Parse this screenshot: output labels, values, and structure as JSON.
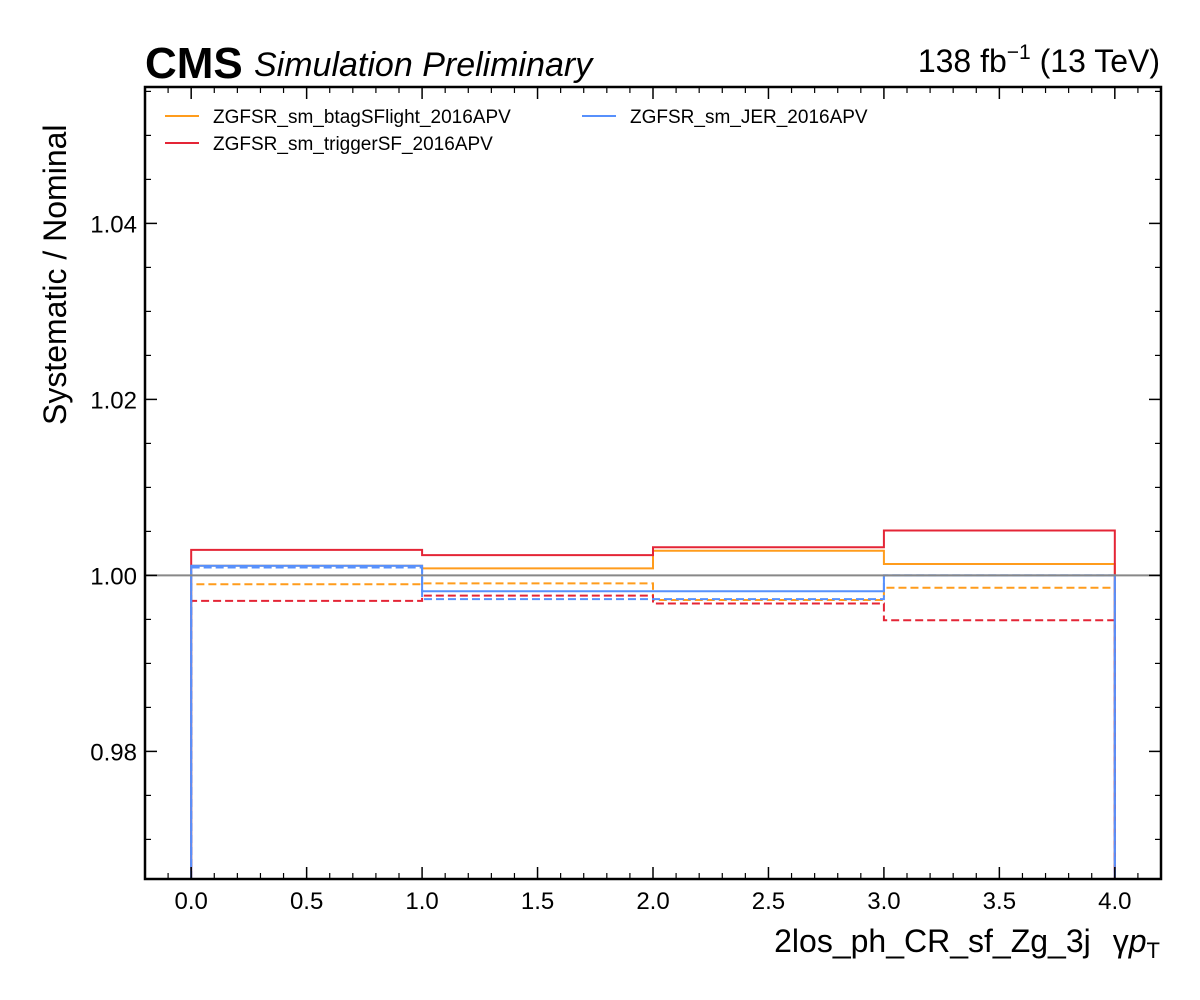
{
  "header": {
    "experiment": "CMS",
    "status": "Simulation Preliminary",
    "lumi_value": "138 fb",
    "lumi_exp": "−1",
    "lumi_energy": " (13 TeV)"
  },
  "chart_data": {
    "type": "line",
    "drawstyle": "steps",
    "xlabel": "2los_ph_CR_sf_Zg_3j",
    "xlabel_suffix_gamma": "γ",
    "xlabel_suffix_p": "p",
    "xlabel_suffix_sub": "T",
    "ylabel": "Systematic / Nominal",
    "xlim": [
      -0.2,
      4.2
    ],
    "ylim": [
      0.9655,
      1.0555
    ],
    "bin_edges": [
      0,
      1,
      2,
      3,
      4
    ],
    "x_ticks": [
      0.0,
      0.5,
      1.0,
      1.5,
      2.0,
      2.5,
      3.0,
      3.5,
      4.0
    ],
    "x_tick_labels": [
      "0.0",
      "0.5",
      "1.0",
      "1.5",
      "2.0",
      "2.5",
      "3.0",
      "3.5",
      "4.0"
    ],
    "y_ticks": [
      0.98,
      1.0,
      1.02,
      1.04
    ],
    "y_tick_labels": [
      "0.98",
      "1.00",
      "1.02",
      "1.04"
    ],
    "reference_line": 1.0,
    "reference_color": "#888888",
    "legend_position": "top-left",
    "series": [
      {
        "name": "ZGFSR_sm_btagSFlight_2016APV",
        "color": "#ff9c1c",
        "up": [
          1.0011,
          1.0008,
          1.0028,
          1.0013
        ],
        "down": [
          0.999,
          0.9991,
          0.9972,
          0.9986
        ]
      },
      {
        "name": "ZGFSR_sm_triggerSF_2016APV",
        "color": "#e42536",
        "up": [
          1.0029,
          1.0023,
          1.0032,
          1.0051
        ],
        "down": [
          0.9971,
          0.9977,
          0.9968,
          0.9949
        ]
      },
      {
        "name": "ZGFSR_sm_JER_2016APV",
        "color": "#5790fc",
        "up": [
          1.0011,
          0.9982,
          0.9982,
          1.0
        ],
        "down": [
          1.0009,
          0.9973,
          0.9973,
          1.0
        ]
      }
    ]
  }
}
